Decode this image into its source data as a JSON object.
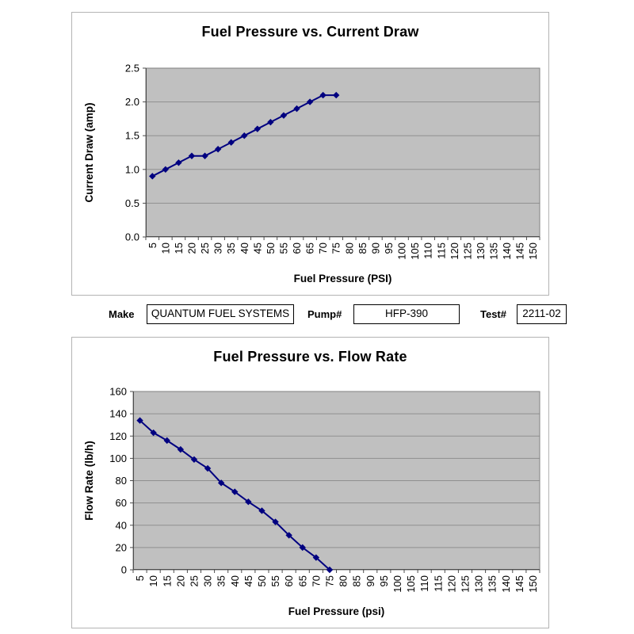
{
  "form": {
    "make_label": "Make",
    "make_value": "QUANTUM FUEL SYSTEMS",
    "pump_label": "Pump#",
    "pump_value": "HFP-390",
    "test_label": "Test#",
    "test_value": "2211-02"
  },
  "colors": {
    "series_line": "#000080",
    "plot_background": "#c0c0c0",
    "gridline": "#8f8f8f",
    "axis": "#4d4d4d",
    "chart_frame": "#b4b4b4",
    "text": "#000000",
    "page_background": "#ffffff"
  },
  "chart_data": [
    {
      "type": "line",
      "title": "Fuel Pressure vs. Current Draw",
      "xlabel": "Fuel Pressure (PSI)",
      "ylabel": "Current Draw (amp)",
      "categories": [
        5,
        10,
        15,
        20,
        25,
        30,
        35,
        40,
        45,
        50,
        55,
        60,
        65,
        70,
        75,
        80,
        85,
        90,
        95,
        100,
        105,
        110,
        115,
        120,
        125,
        130,
        135,
        140,
        145,
        150
      ],
      "x": [
        5,
        10,
        15,
        20,
        25,
        30,
        35,
        40,
        45,
        50,
        55,
        60,
        65,
        70,
        75
      ],
      "values": [
        0.9,
        1.0,
        1.1,
        1.2,
        1.2,
        1.3,
        1.4,
        1.5,
        1.6,
        1.7,
        1.8,
        1.9,
        2.0,
        2.1,
        2.1
      ],
      "ylim": [
        0,
        2.5
      ],
      "ytick_step": 0.5,
      "y_tick_labels": [
        "0.0",
        "0.5",
        "1.0",
        "1.5",
        "2.0",
        "2.5"
      ],
      "grid": "horizontal",
      "legend": "none",
      "marker": "diamond",
      "line_color": "#000080",
      "plot_bg": "#c0c0c0"
    },
    {
      "type": "line",
      "title": "Fuel Pressure vs. Flow Rate",
      "xlabel": "Fuel Pressure (psi)",
      "ylabel": "Flow Rate (lb/h)",
      "categories": [
        5,
        10,
        15,
        20,
        25,
        30,
        35,
        40,
        45,
        50,
        55,
        60,
        65,
        70,
        75,
        80,
        85,
        90,
        95,
        100,
        105,
        110,
        115,
        120,
        125,
        130,
        135,
        140,
        145,
        150
      ],
      "x": [
        5,
        10,
        15,
        20,
        25,
        30,
        35,
        40,
        45,
        50,
        55,
        60,
        65,
        70,
        75
      ],
      "values": [
        134,
        123,
        116,
        108,
        99,
        91,
        78,
        70,
        61,
        53,
        43,
        31,
        20,
        11,
        0
      ],
      "ylim": [
        0,
        160
      ],
      "ytick_step": 20,
      "y_tick_labels": [
        "0",
        "20",
        "40",
        "60",
        "80",
        "100",
        "120",
        "140",
        "160"
      ],
      "grid": "horizontal",
      "legend": "none",
      "marker": "diamond",
      "line_color": "#000080",
      "plot_bg": "#c0c0c0"
    }
  ]
}
